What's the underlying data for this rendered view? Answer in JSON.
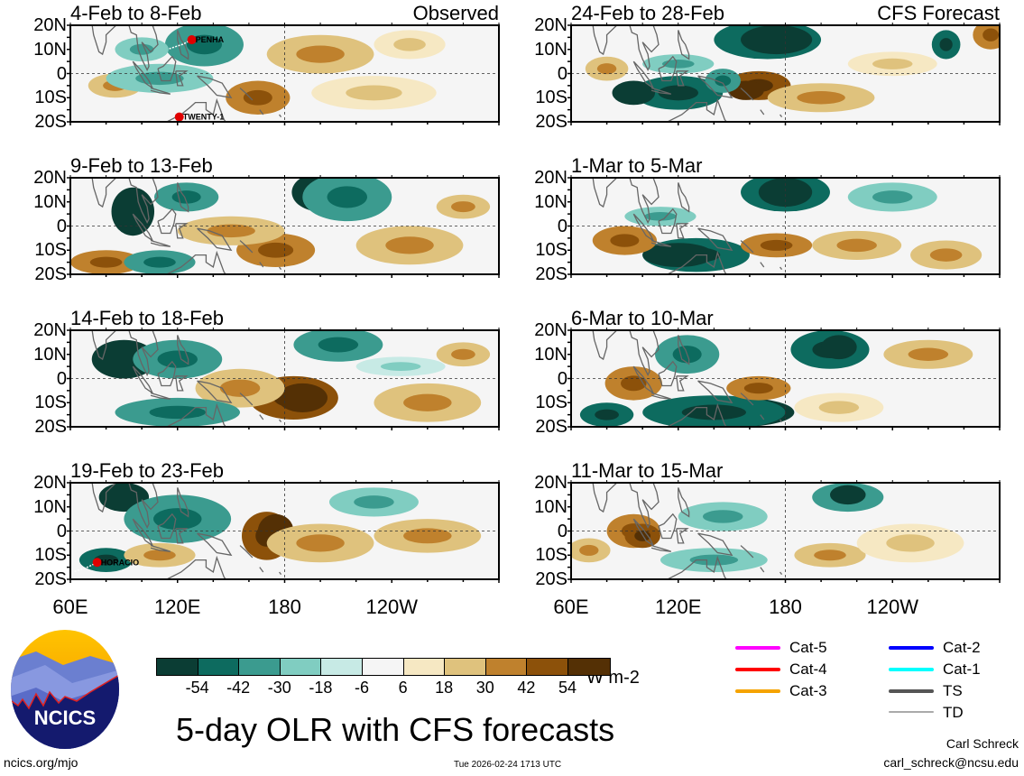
{
  "panels": [
    {
      "title": "4-Feb to 8-Feb",
      "label": "Observed",
      "storms": [
        {
          "name": "PENHA",
          "lon": 128,
          "lat": 14
        },
        {
          "name": "TWENTY-1",
          "lon": 121,
          "lat": -18
        }
      ]
    },
    {
      "title": "24-Feb to 28-Feb",
      "label": "CFS Forecast",
      "storms": []
    },
    {
      "title": "9-Feb to 13-Feb",
      "label": "",
      "storms": []
    },
    {
      "title": "1-Mar to 5-Mar",
      "label": "",
      "storms": []
    },
    {
      "title": "14-Feb to 18-Feb",
      "label": "",
      "storms": []
    },
    {
      "title": "6-Mar to 10-Mar",
      "label": "",
      "storms": []
    },
    {
      "title": "19-Feb to 23-Feb",
      "label": "",
      "storms": [
        {
          "name": "HORACIO",
          "lon": 75,
          "lat": -13
        }
      ]
    },
    {
      "title": "11-Mar to 15-Mar",
      "label": "",
      "storms": []
    }
  ],
  "y_ticks": [
    "20N",
    "10N",
    "0",
    "10S",
    "20S"
  ],
  "x_ticks": [
    "60E",
    "120E",
    "180",
    "120W"
  ],
  "colorbar": {
    "colors": [
      "#0b3d34",
      "#0d6b5f",
      "#3b9b8f",
      "#80cdc1",
      "#c7eae5",
      "#f5f5f5",
      "#f6e8c3",
      "#dfc27d",
      "#bf812d",
      "#8c510a",
      "#543005"
    ],
    "labels": [
      "-54",
      "-42",
      "-30",
      "-18",
      "-6",
      "6",
      "18",
      "30",
      "42",
      "54"
    ],
    "units": "W m-2"
  },
  "legend": [
    {
      "label": "Cat-5",
      "color": "#ff00ff"
    },
    {
      "label": "Cat-4",
      "color": "#ff0000"
    },
    {
      "label": "Cat-3",
      "color": "#f5a300"
    },
    {
      "label": "Cat-2",
      "color": "#0000ff"
    },
    {
      "label": "Cat-1",
      "color": "#00ffff"
    },
    {
      "label": "TS",
      "color": "#555555"
    },
    {
      "label": "TD",
      "color": "#aaaaaa"
    }
  ],
  "logo_text": "NCICS",
  "main_title": "5-day OLR with CFS forecasts",
  "footer": {
    "url": "ncics.org/mjo",
    "timestamp": "Tue 2026-02-24 1713 UTC",
    "author": "Carl Schreck",
    "email": "carl_schreck@ncsu.edu"
  }
}
